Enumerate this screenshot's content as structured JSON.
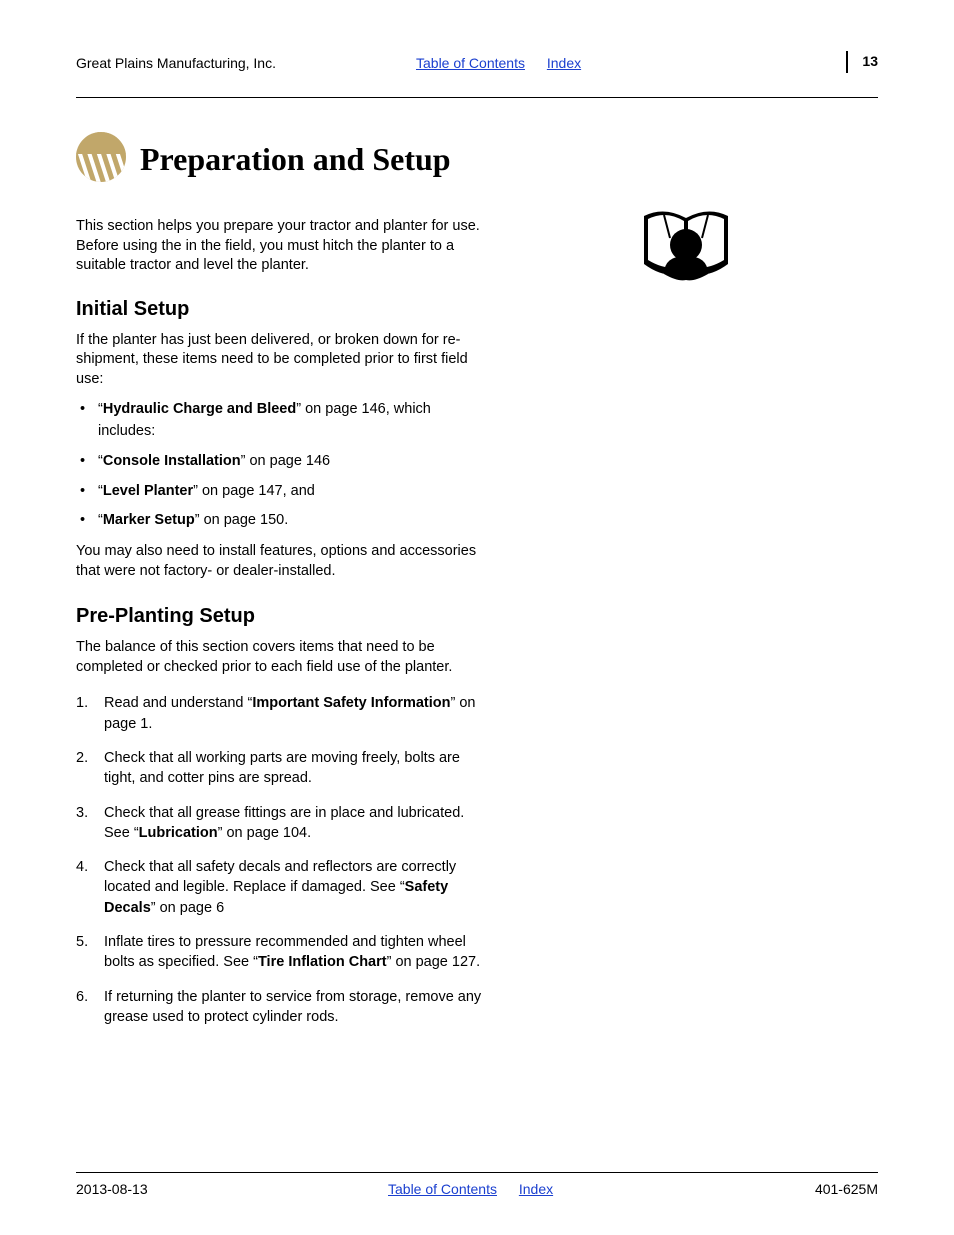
{
  "header": {
    "company": "Great Plains Manufacturing, Inc.",
    "toc_link": "Table of Contents",
    "index_link": "Index",
    "page_number": "13"
  },
  "logo": {
    "fill_color": "#c1a76a"
  },
  "title": "Preparation and Setup",
  "intro": "This section helps you prepare your tractor and planter for use. Before using the in the field, you must hitch the planter to a suitable tractor and level the planter.",
  "initial_setup": {
    "heading": "Initial Setup",
    "lead": "If the planter has just been delivered, or broken down for re-shipment, these items need to be completed prior to first field use:",
    "bullets": [
      {
        "pre": "“",
        "bold": "Hydraulic Charge and Bleed",
        "post": "” on page 146, which includes:"
      },
      {
        "pre": "“",
        "bold": "Console Installation",
        "post": "” on page 146"
      },
      {
        "pre": "“",
        "bold": "Level Planter",
        "post": "” on page 147, and"
      },
      {
        "pre": "“",
        "bold": "Marker Setup",
        "post": "” on page 150."
      }
    ],
    "tail": "You may also need to install features, options and accessories that were not factory- or dealer-installed."
  },
  "pre_planting": {
    "heading": "Pre-Planting Setup",
    "lead": "The balance of this section covers items that need to be completed or checked prior to each field use of the planter.",
    "items": [
      {
        "num": "1.",
        "parts": [
          {
            "t": "Read and understand “"
          },
          {
            "b": "Important Safety Information"
          },
          {
            "t": "” on page 1."
          }
        ]
      },
      {
        "num": "2.",
        "parts": [
          {
            "t": "Check that all working parts are moving freely, bolts are tight, and cotter pins are spread."
          }
        ]
      },
      {
        "num": "3.",
        "parts": [
          {
            "t": "Check that all grease fittings are in place and lubricated. See “"
          },
          {
            "b": "Lubrication"
          },
          {
            "t": "” on page 104."
          }
        ]
      },
      {
        "num": "4.",
        "parts": [
          {
            "t": "Check that all safety decals and reflectors are correctly located and legible. Replace if damaged. See “"
          },
          {
            "b": "Safety Decals"
          },
          {
            "t": "” on page 6"
          }
        ]
      },
      {
        "num": "5.",
        "parts": [
          {
            "t": "Inflate tires to pressure recommended and tighten wheel bolts as specified. See “"
          },
          {
            "b": "Tire Inflation Chart"
          },
          {
            "t": "” on page 127."
          }
        ]
      },
      {
        "num": "6.",
        "parts": [
          {
            "t": "If returning the planter to service from storage, remove any grease used to protect cylinder rods."
          }
        ]
      }
    ]
  },
  "footer": {
    "date": "2013-08-13",
    "toc_link": "Table of Contents",
    "index_link": "Index",
    "doc_number": "401-625M"
  }
}
